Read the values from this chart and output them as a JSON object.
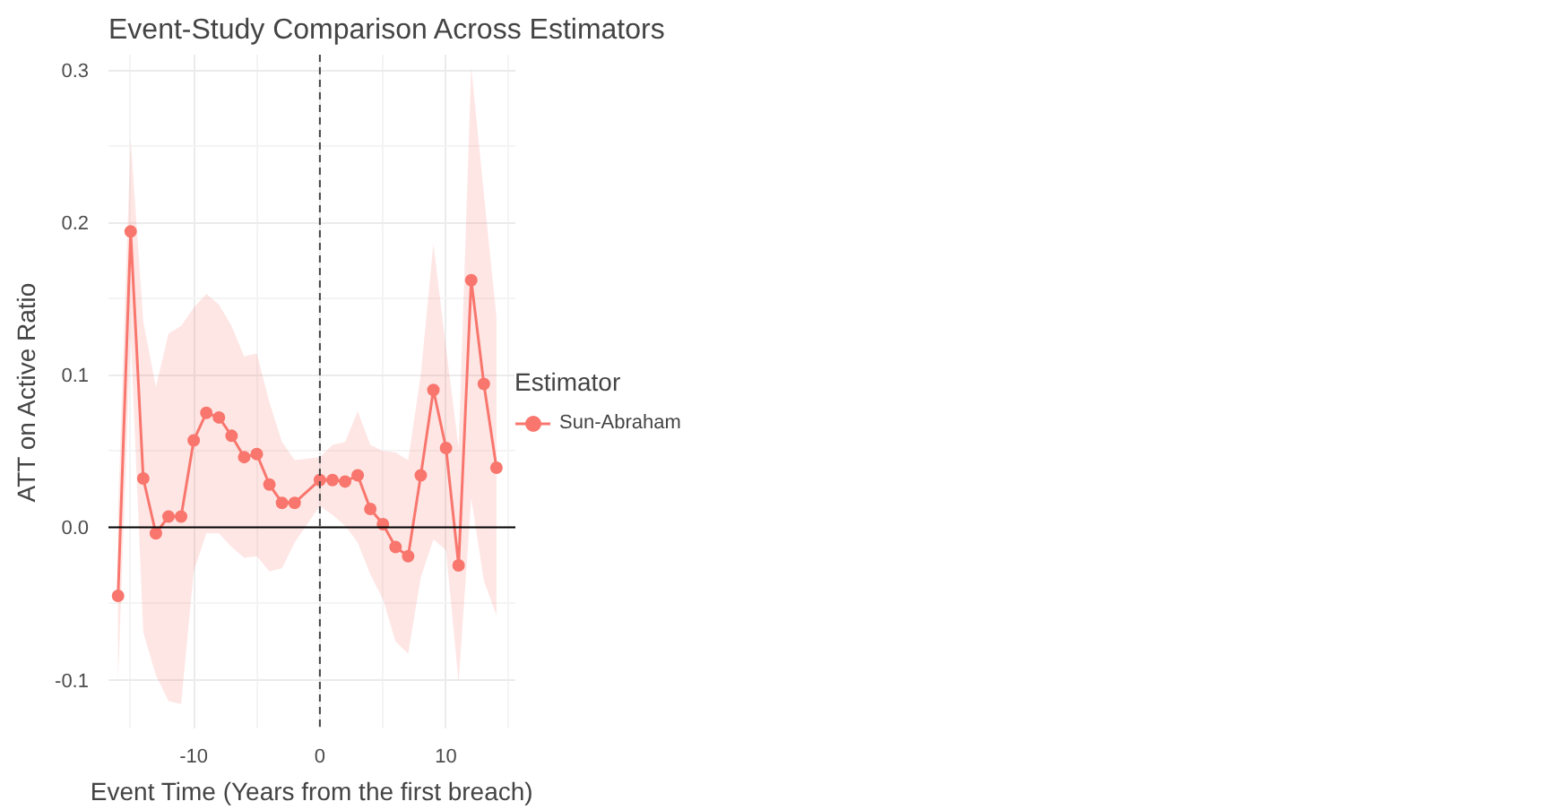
{
  "chart_data": {
    "type": "line",
    "title": "Event-Study Comparison Across Estimators",
    "xlabel": "Event Time (Years from the first breach)",
    "ylabel": "ATT on Active Ratio",
    "legend_title": "Estimator",
    "legend": "right",
    "grid": true,
    "marker": "circle",
    "line_style": "solid",
    "xlim": [
      -16.76,
      15.5
    ],
    "ylim": [
      -0.132,
      0.31
    ],
    "xticks": [
      -10,
      0,
      10
    ],
    "yticks": [
      {
        "value": -0.1,
        "label": "-0.1"
      },
      {
        "value": 0,
        "label": "0.0"
      },
      {
        "value": 0.1,
        "label": "0.1"
      },
      {
        "value": 0.2,
        "label": "0.2"
      },
      {
        "value": 0.3,
        "label": "0.3"
      }
    ],
    "ref_lines": [
      {
        "axis": "y",
        "value": 0,
        "color": "#000000",
        "line_style": "solid"
      },
      {
        "axis": "x",
        "value": 0,
        "color": "#444444",
        "line_style": "dashed"
      }
    ],
    "series": [
      {
        "name": "Sun-Abraham",
        "color": "#f8766d",
        "x": [
          -16,
          -15,
          -14,
          -13,
          -12,
          -11,
          -10,
          -9,
          -8,
          -7,
          -6,
          -5,
          -4,
          -3,
          -2,
          0,
          1,
          2,
          3,
          4,
          5,
          6,
          7,
          8,
          9,
          10,
          11,
          12,
          13,
          14
        ],
        "values": [
          -0.045,
          0.194,
          0.032,
          -0.004,
          0.007,
          0.007,
          0.057,
          0.075,
          0.072,
          0.06,
          0.046,
          0.048,
          0.028,
          0.016,
          0.016,
          0.031,
          0.031,
          0.03,
          0.034,
          0.012,
          0.002,
          -0.013,
          -0.019,
          0.034,
          0.09,
          0.052,
          -0.025,
          0.162,
          0.094,
          0.039
        ],
        "lower": [
          -0.1,
          0.126,
          -0.069,
          -0.097,
          -0.114,
          -0.116,
          -0.029,
          -0.004,
          -0.004,
          -0.013,
          -0.02,
          -0.019,
          -0.029,
          -0.027,
          -0.01,
          0.014,
          0.008,
          0.001,
          -0.01,
          -0.031,
          -0.047,
          -0.075,
          -0.083,
          -0.033,
          -0.008,
          -0.015,
          -0.102,
          0.019,
          -0.035,
          -0.058
        ],
        "upper": [
          0.011,
          0.255,
          0.135,
          0.092,
          0.127,
          0.132,
          0.144,
          0.153,
          0.146,
          0.132,
          0.112,
          0.114,
          0.082,
          0.056,
          0.044,
          0.046,
          0.054,
          0.056,
          0.076,
          0.054,
          0.05,
          0.049,
          0.044,
          0.1,
          0.186,
          0.118,
          0.052,
          0.302,
          0.219,
          0.138
        ]
      }
    ]
  }
}
